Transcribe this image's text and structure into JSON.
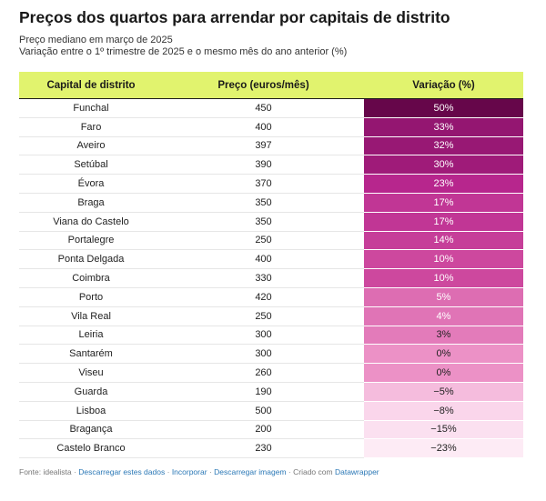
{
  "title": "Preços dos quartos para arrendar por capitais de distrito",
  "subtitle_1": "Preço mediano em março de 2025",
  "subtitle_2": "Variação entre o 1º trimestre de 2025 e o mesmo mês do ano anterior (%)",
  "colors": {
    "header_bg": "#e1f36e",
    "heat_max": "#66064a",
    "heat_min": "#fde9f3",
    "link": "#2b78b6"
  },
  "chart_data": {
    "type": "table",
    "columns": [
      "Capital de distrito",
      "Preço (euros/mês)",
      "Variação (%)"
    ],
    "rows": [
      {
        "city": "Funchal",
        "price": 450,
        "variation": 50,
        "variation_label": "50%"
      },
      {
        "city": "Faro",
        "price": 400,
        "variation": 33,
        "variation_label": "33%"
      },
      {
        "city": "Aveiro",
        "price": 397,
        "variation": 32,
        "variation_label": "32%"
      },
      {
        "city": "Setúbal",
        "price": 390,
        "variation": 30,
        "variation_label": "30%"
      },
      {
        "city": "Évora",
        "price": 370,
        "variation": 23,
        "variation_label": "23%"
      },
      {
        "city": "Braga",
        "price": 350,
        "variation": 17,
        "variation_label": "17%"
      },
      {
        "city": "Viana do Castelo",
        "price": 350,
        "variation": 17,
        "variation_label": "17%"
      },
      {
        "city": "Portalegre",
        "price": 250,
        "variation": 14,
        "variation_label": "14%"
      },
      {
        "city": "Ponta Delgada",
        "price": 400,
        "variation": 10,
        "variation_label": "10%"
      },
      {
        "city": "Coimbra",
        "price": 330,
        "variation": 10,
        "variation_label": "10%"
      },
      {
        "city": "Porto",
        "price": 420,
        "variation": 5,
        "variation_label": "5%"
      },
      {
        "city": "Vila Real",
        "price": 250,
        "variation": 4,
        "variation_label": "4%"
      },
      {
        "city": "Leiria",
        "price": 300,
        "variation": 3,
        "variation_label": "3%"
      },
      {
        "city": "Santarém",
        "price": 300,
        "variation": 0,
        "variation_label": "0%"
      },
      {
        "city": "Viseu",
        "price": 260,
        "variation": 0,
        "variation_label": "0%"
      },
      {
        "city": "Guarda",
        "price": 190,
        "variation": -5,
        "variation_label": "−5%"
      },
      {
        "city": "Lisboa",
        "price": 500,
        "variation": -8,
        "variation_label": "−8%"
      },
      {
        "city": "Bragança",
        "price": 200,
        "variation": -15,
        "variation_label": "−15%"
      },
      {
        "city": "Castelo Branco",
        "price": 230,
        "variation": -23,
        "variation_label": "−23%"
      }
    ]
  },
  "footer": {
    "source": "Fonte: idealista",
    "sep": "·",
    "links": [
      "Descarregar estes dados",
      "Incorporar",
      "Descarregar imagem"
    ],
    "made_with": "Criado com",
    "brand": "Datawrapper"
  }
}
